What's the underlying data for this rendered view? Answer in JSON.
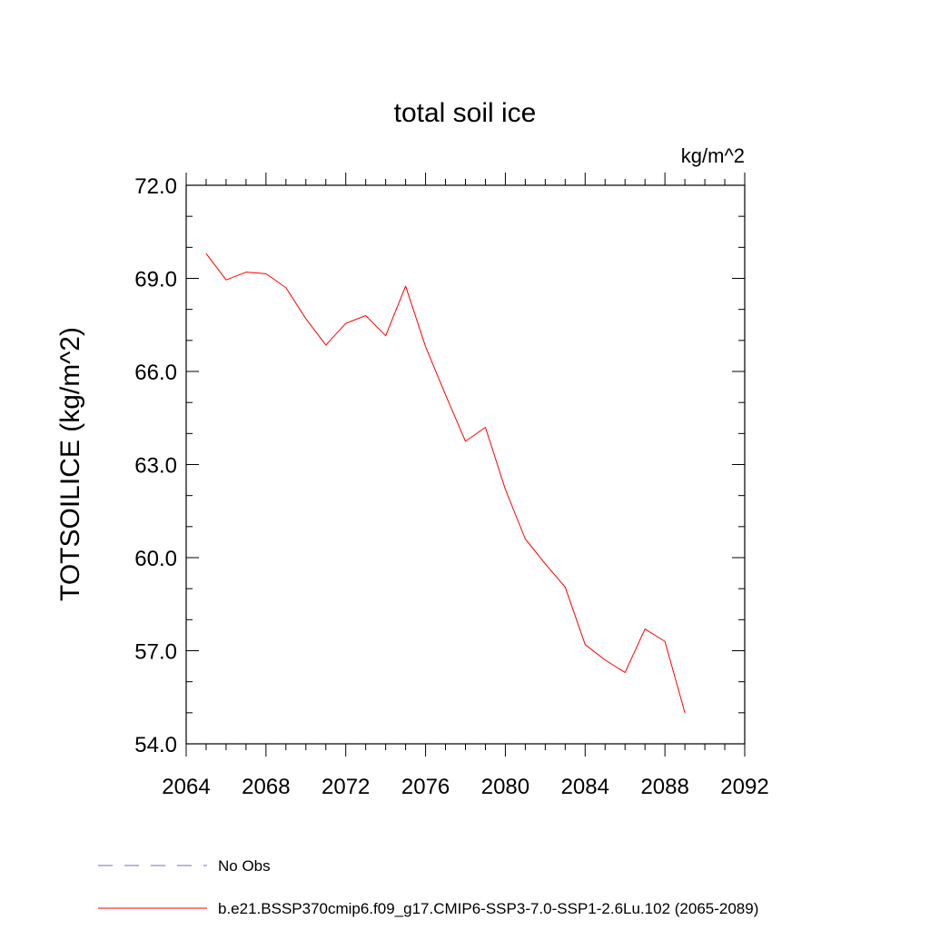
{
  "colors": {
    "model_line": "#ff0000",
    "obs_line": "#7a6fb0",
    "axes": "#000000"
  },
  "chart_data": {
    "type": "line",
    "title": "total soil ice",
    "units_label": "kg/m^2",
    "ylabel": "TOTSOILICE  (kg/m^2)",
    "xlabel": "",
    "xlim": [
      2064,
      2092
    ],
    "ylim": [
      54.0,
      72.0
    ],
    "x_ticks": [
      "2064",
      "2068",
      "2072",
      "2076",
      "2080",
      "2084",
      "2088",
      "2092"
    ],
    "y_ticks": [
      "54.0",
      "57.0",
      "60.0",
      "63.0",
      "66.0",
      "69.0",
      "72.0"
    ],
    "grid": false,
    "legend_position": "bottom",
    "legend": [
      {
        "label": "No Obs",
        "style": "dashed"
      },
      {
        "label": "b.e21.BSSP370cmip6.f09_g17.CMIP6-SSP3-7.0-SSP1-2.6Lu.102 (2065-2089)",
        "style": "solid"
      }
    ],
    "series": [
      {
        "name": "b.e21.BSSP370cmip6.f09_g17.CMIP6-SSP3-7.0-SSP1-2.6Lu.102 (2065-2089)",
        "x": [
          2065,
          2066,
          2067,
          2068,
          2069,
          2070,
          2071,
          2072,
          2073,
          2074,
          2075,
          2076,
          2077,
          2078,
          2079,
          2080,
          2081,
          2082,
          2083,
          2084,
          2085,
          2086,
          2087,
          2088,
          2089
        ],
        "y": [
          69.8,
          68.95,
          69.2,
          69.15,
          68.7,
          67.7,
          66.85,
          67.55,
          67.8,
          67.15,
          68.75,
          66.8,
          65.25,
          63.75,
          64.2,
          62.2,
          60.6,
          59.8,
          59.05,
          57.2,
          56.7,
          56.3,
          57.7,
          57.3,
          55.0
        ]
      }
    ]
  }
}
